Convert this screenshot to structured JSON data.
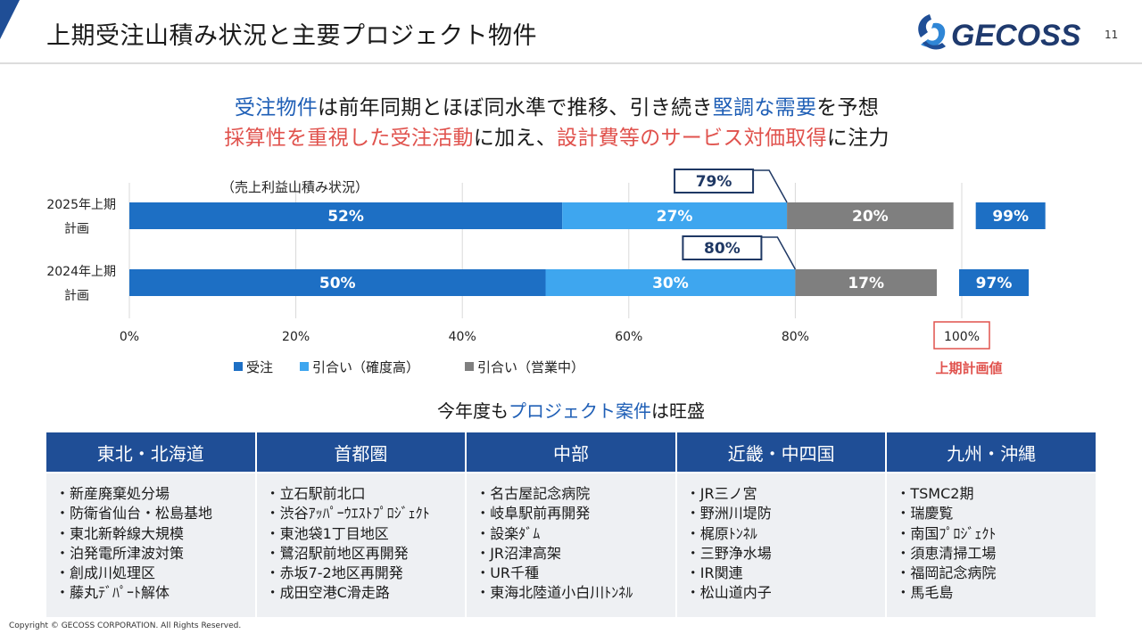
{
  "header": {
    "title": "上期受注山積み状況と主要プロジェクト物件",
    "logo_text": "GECOSS",
    "page_number": "11"
  },
  "headline": {
    "line1": [
      {
        "text": "受注物件",
        "color": "blue"
      },
      {
        "text": "は前年同期とほぼ同水準で推移、引き続き",
        "color": "dark"
      },
      {
        "text": "堅調な需要",
        "color": "blue"
      },
      {
        "text": "を予想",
        "color": "dark"
      }
    ],
    "line2": [
      {
        "text": "採算性を重視した受注活動",
        "color": "red"
      },
      {
        "text": "に加え、",
        "color": "dark"
      },
      {
        "text": "設計費等のサービス対価取得",
        "color": "red"
      },
      {
        "text": "に注力",
        "color": "dark"
      }
    ]
  },
  "chart_data": {
    "type": "bar",
    "orientation": "horizontal",
    "stacked": true,
    "subtitle": "（売上利益山積み状況）",
    "categories": [
      "2025年上期\n計画",
      "2024年上期\n計画"
    ],
    "series": [
      {
        "name": "受注",
        "values": [
          52,
          50
        ],
        "color": "#1d6fc4"
      },
      {
        "name": "引合い（確度高）",
        "values": [
          27,
          30
        ],
        "color": "#3ea6ef"
      },
      {
        "name": "引合い（営業中）",
        "values": [
          20,
          17
        ],
        "color": "#7f7f7f"
      }
    ],
    "data_labels": [
      [
        "52%",
        "27%",
        "20%"
      ],
      [
        "50%",
        "30%",
        "17%"
      ]
    ],
    "subtotal_labels": [
      "79%",
      "80%"
    ],
    "totals": [
      99,
      97
    ],
    "total_labels": [
      "99%",
      "97%"
    ],
    "xlim": [
      0,
      100
    ],
    "x_ticks": [
      0,
      20,
      40,
      60,
      80,
      100
    ],
    "x_tick_labels": [
      "0%",
      "20%",
      "40%",
      "60%",
      "80%",
      "100%"
    ],
    "grid": true,
    "legend_position": "bottom",
    "plan_value_label": "上期計画値",
    "colors": {
      "order": "#1d6fc4",
      "high": "#3ea6ef",
      "sales": "#7f7f7f",
      "total_box": "#1d6fc4",
      "callout_border": "#1f3864",
      "plan_accent": "#e0524d"
    }
  },
  "projects": {
    "title_parts": [
      {
        "text": "今年度も",
        "color": "dark"
      },
      {
        "text": "プロジェクト案件",
        "color": "blue"
      },
      {
        "text": "は旺盛",
        "color": "dark"
      }
    ],
    "regions": [
      {
        "name": "東北・北海道",
        "items": [
          "・新産廃棄処分場",
          "・防衛省仙台・松島基地",
          "・東北新幹線大規模",
          "・泊発電所津波対策",
          "・創成川処理区",
          "・藤丸ﾃﾞﾊﾟｰﾄ解体"
        ]
      },
      {
        "name": "首都圏",
        "items": [
          "・立石駅前北口",
          "・渋谷ｱｯﾊﾟｰｳｴｽﾄﾌﾟﾛｼﾞｪｸﾄ",
          "・東池袋1丁目地区",
          "・鷺沼駅前地区再開発",
          "・赤坂7-2地区再開発",
          "・成田空港C滑走路"
        ]
      },
      {
        "name": "中部",
        "items": [
          "・名古屋記念病院",
          "・岐阜駅前再開発",
          "・設楽ﾀﾞﾑ",
          "・JR沼津高架",
          "・UR千種",
          "・東海北陸道小白川ﾄﾝﾈﾙ"
        ]
      },
      {
        "name": "近畿・中四国",
        "items": [
          "・JR三ノ宮",
          "・野洲川堤防",
          "・梶原ﾄﾝﾈﾙ",
          "・三野浄水場",
          "・IR関連",
          "・松山道内子"
        ]
      },
      {
        "name": "九州・沖縄",
        "items": [
          "・TSMC2期",
          "・瑞慶覧",
          "・南国ﾌﾟﾛｼﾞｪｸﾄ",
          "・須恵清掃工場",
          "・福岡記念病院",
          "・馬毛島"
        ]
      }
    ]
  },
  "footer": {
    "copyright": "Copyright © GECOSS CORPORATION. All Rights Reserved."
  }
}
